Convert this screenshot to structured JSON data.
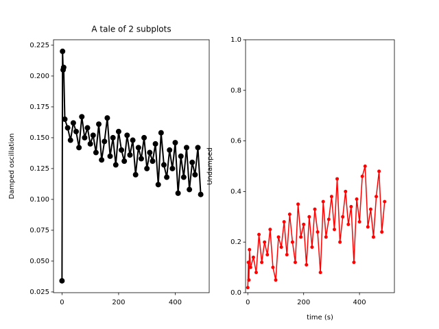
{
  "chart_data": [
    {
      "type": "line",
      "title": "A tale of 2 subplots",
      "y_label": "Damped oscillation",
      "x": [
        0,
        2,
        4,
        6,
        10,
        20,
        30,
        40,
        50,
        60,
        70,
        80,
        90,
        100,
        110,
        120,
        130,
        140,
        150,
        160,
        170,
        180,
        190,
        200,
        210,
        220,
        230,
        240,
        250,
        260,
        270,
        280,
        290,
        300,
        310,
        320,
        330,
        340,
        350,
        360,
        370,
        380,
        390,
        400,
        410,
        420,
        430,
        440,
        450,
        460,
        470,
        480,
        490
      ],
      "series": [
        {
          "color": "#000000",
          "values": [
            0.034,
            0.22,
            0.205,
            0.207,
            0.165,
            0.158,
            0.148,
            0.162,
            0.155,
            0.142,
            0.167,
            0.15,
            0.158,
            0.145,
            0.152,
            0.138,
            0.161,
            0.132,
            0.147,
            0.166,
            0.135,
            0.15,
            0.128,
            0.155,
            0.14,
            0.131,
            0.152,
            0.136,
            0.148,
            0.12,
            0.142,
            0.133,
            0.15,
            0.125,
            0.138,
            0.131,
            0.145,
            0.112,
            0.154,
            0.128,
            0.118,
            0.14,
            0.125,
            0.146,
            0.105,
            0.135,
            0.118,
            0.142,
            0.108,
            0.13,
            0.12,
            0.142,
            0.104
          ]
        }
      ],
      "xlim": [
        -30,
        520
      ],
      "ylim": [
        0.0244,
        0.2294
      ],
      "xticks": [
        0,
        200,
        400
      ],
      "yticks": [
        0.025,
        {
          "value": 0.05,
          "label": "0.050"
        },
        0.075,
        {
          "value": 0.1,
          "label": "0.100"
        },
        0.125,
        {
          "value": 0.15,
          "label": "0.150"
        },
        0.175,
        {
          "value": 0.2,
          "label": "0.200"
        },
        0.225
      ]
    },
    {
      "type": "line",
      "x_label": "time (s)",
      "y_label": "Undamped",
      "x": [
        0,
        2,
        4,
        6,
        10,
        20,
        30,
        40,
        50,
        60,
        70,
        80,
        90,
        100,
        110,
        120,
        130,
        140,
        150,
        160,
        170,
        180,
        190,
        200,
        210,
        220,
        230,
        240,
        250,
        260,
        270,
        280,
        290,
        300,
        310,
        320,
        330,
        340,
        350,
        360,
        370,
        380,
        390,
        400,
        410,
        420,
        430,
        440,
        450,
        460,
        470,
        480,
        490
      ],
      "series": [
        {
          "color": "#ff0000",
          "values": [
            0.02,
            0.12,
            0.05,
            0.17,
            0.1,
            0.14,
            0.08,
            0.23,
            0.12,
            0.2,
            0.15,
            0.25,
            0.1,
            0.05,
            0.22,
            0.18,
            0.28,
            0.15,
            0.31,
            0.2,
            0.12,
            0.35,
            0.22,
            0.27,
            0.11,
            0.3,
            0.18,
            0.33,
            0.24,
            0.08,
            0.36,
            0.22,
            0.29,
            0.38,
            0.25,
            0.45,
            0.2,
            0.3,
            0.4,
            0.27,
            0.34,
            0.12,
            0.37,
            0.28,
            0.46,
            0.5,
            0.26,
            0.33,
            0.22,
            0.38,
            0.48,
            0.24,
            0.36
          ]
        }
      ],
      "xlim": [
        -8,
        525
      ],
      "ylim": [
        0,
        1
      ],
      "xticks": [
        0,
        200,
        400
      ],
      "yticks": [
        {
          "value": 0,
          "label": "0.0"
        },
        0.2,
        0.4,
        0.6,
        0.8,
        {
          "value": 1,
          "label": "1.0"
        }
      ]
    }
  ]
}
